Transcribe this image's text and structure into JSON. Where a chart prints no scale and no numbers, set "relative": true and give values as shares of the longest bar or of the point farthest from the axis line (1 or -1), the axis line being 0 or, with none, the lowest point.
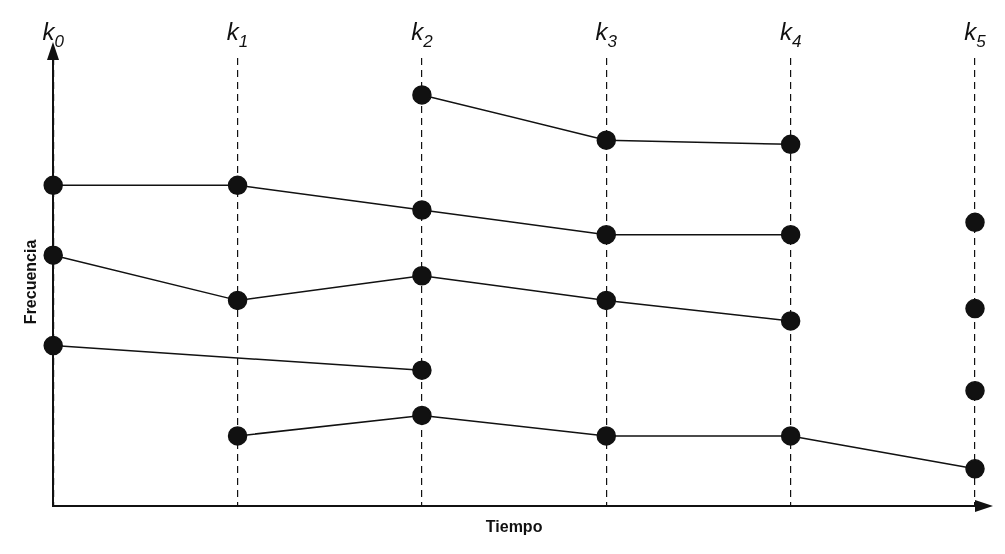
{
  "chart_data": {
    "type": "line",
    "relative": true,
    "xlabel": "Tiempo",
    "ylabel": "Frecuencia",
    "categories": [
      "k$_{0}$",
      "k$_{1}$",
      "k$_{2}$",
      "k$_{3}$",
      "k$_{4}$",
      "k$_{5}$"
    ],
    "series": [
      {
        "color": "#111111",
        "values": [
          null,
          null,
          1,
          0.89,
          0.88,
          null
        ]
      },
      {
        "color": "#111111",
        "values": [
          0.78,
          0.78,
          0.72,
          0.66,
          0.66,
          null
        ]
      },
      {
        "color": "#111111",
        "values": [
          0.61,
          0.5,
          0.56,
          0.5,
          0.45,
          null
        ]
      },
      {
        "color": "#111111",
        "values": [
          0.39,
          null,
          0.33,
          null,
          null,
          null
        ]
      },
      {
        "color": "#111111",
        "values": [
          null,
          0.17,
          0.22,
          0.17,
          0.17,
          0.09
        ]
      },
      {
        "color": "#111111",
        "values": [
          null,
          null,
          null,
          null,
          null,
          0.69
        ]
      },
      {
        "color": "#111111",
        "values": [
          null,
          null,
          null,
          null,
          null,
          0.48
        ]
      },
      {
        "color": "#111111",
        "values": [
          null,
          null,
          null,
          null,
          null,
          0.28
        ]
      }
    ],
    "grid": "x",
    "line_style": "solid",
    "marker": "circle",
    "legend": false
  }
}
